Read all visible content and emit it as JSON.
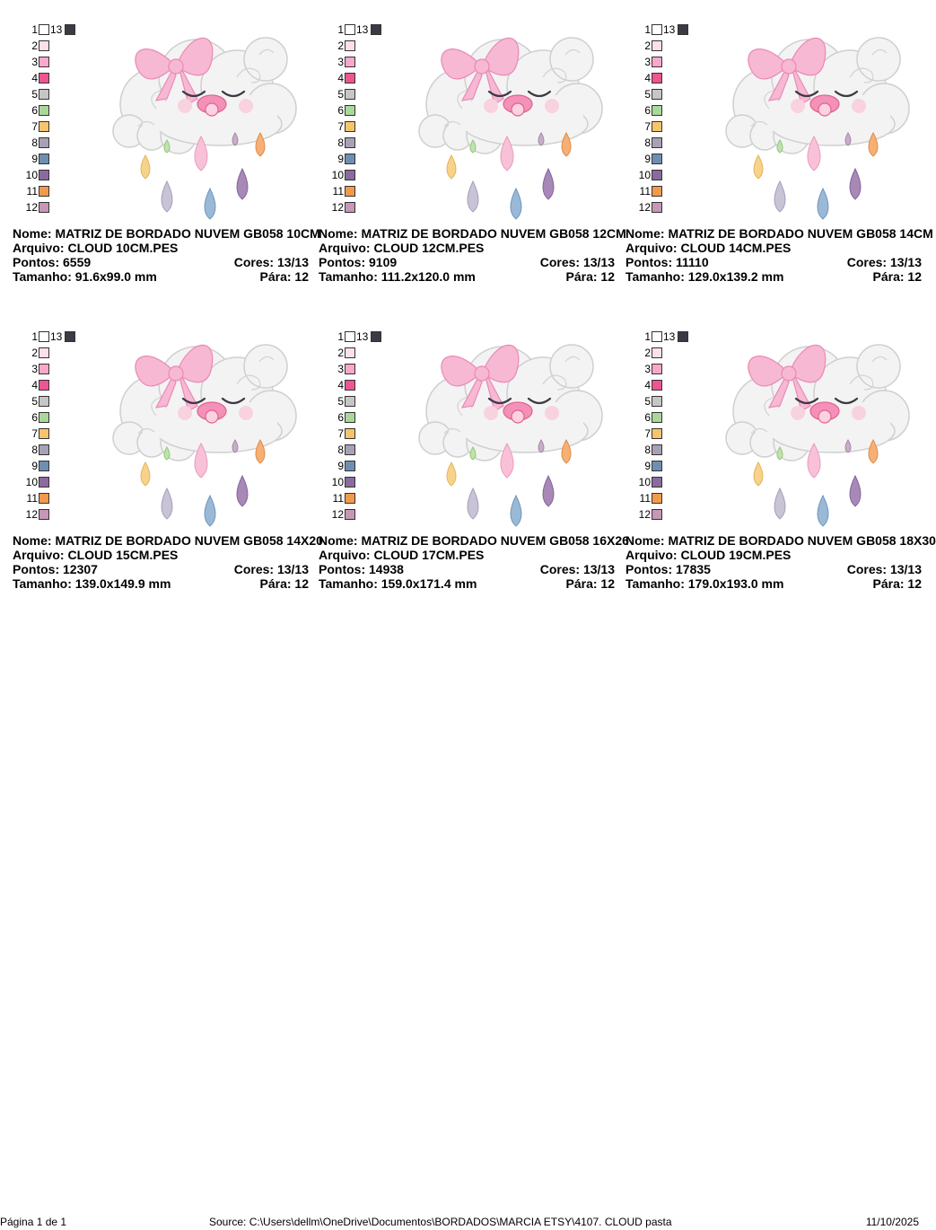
{
  "palette_colors": [
    "#ffffff",
    "#fde0ea",
    "#f9a8cc",
    "#ee5592",
    "#c6c6c6",
    "#a9d89a",
    "#f7c46d",
    "#a8a1b6",
    "#6f8fb0",
    "#8a6a9f",
    "#f29a4c",
    "#c896b6",
    "#3c3a45"
  ],
  "designs": [
    {
      "nome_label": "Nome:",
      "nome": "MATRIZ DE BORDADO NUVEM GB058 10CM",
      "arquivo_label": "Arquivo:",
      "arquivo": "CLOUD 10CM.PES",
      "pontos_label": "Pontos:",
      "pontos": "6559",
      "cores_label": "Cores:",
      "cores": "13/13",
      "tamanho_label": "Tamanho:",
      "tamanho": "91.6x99.0 mm",
      "para_label": "Pára:",
      "para": "12"
    },
    {
      "nome_label": "Nome:",
      "nome": "MATRIZ DE BORDADO NUVEM GB058 12CM",
      "arquivo_label": "Arquivo:",
      "arquivo": "CLOUD 12CM.PES",
      "pontos_label": "Pontos:",
      "pontos": "9109",
      "cores_label": "Cores:",
      "cores": "13/13",
      "tamanho_label": "Tamanho:",
      "tamanho": "111.2x120.0 mm",
      "para_label": "Pára:",
      "para": "12"
    },
    {
      "nome_label": "Nome:",
      "nome": "MATRIZ DE BORDADO NUVEM GB058 14CM",
      "arquivo_label": "Arquivo:",
      "arquivo": "CLOUD 14CM.PES",
      "pontos_label": "Pontos:",
      "pontos": "11110",
      "cores_label": "Cores:",
      "cores": "13/13",
      "tamanho_label": "Tamanho:",
      "tamanho": "129.0x139.2 mm",
      "para_label": "Pára:",
      "para": "12"
    },
    {
      "nome_label": "Nome:",
      "nome": "MATRIZ DE BORDADO NUVEM GB058 14X20",
      "arquivo_label": "Arquivo:",
      "arquivo": "CLOUD 15CM.PES",
      "pontos_label": "Pontos:",
      "pontos": "12307",
      "cores_label": "Cores:",
      "cores": "13/13",
      "tamanho_label": "Tamanho:",
      "tamanho": "139.0x149.9 mm",
      "para_label": "Pára:",
      "para": "12"
    },
    {
      "nome_label": "Nome:",
      "nome": "MATRIZ DE BORDADO NUVEM GB058 16X26",
      "arquivo_label": "Arquivo:",
      "arquivo": "CLOUD 17CM.PES",
      "pontos_label": "Pontos:",
      "pontos": "14938",
      "cores_label": "Cores:",
      "cores": "13/13",
      "tamanho_label": "Tamanho:",
      "tamanho": "159.0x171.4 mm",
      "para_label": "Pára:",
      "para": "12"
    },
    {
      "nome_label": "Nome:",
      "nome": "MATRIZ DE BORDADO NUVEM GB058 18X30",
      "arquivo_label": "Arquivo:",
      "arquivo": "CLOUD 19CM.PES",
      "pontos_label": "Pontos:",
      "pontos": "17835",
      "cores_label": "Cores:",
      "cores": "13/13",
      "tamanho_label": "Tamanho:",
      "tamanho": "179.0x193.0 mm",
      "para_label": "Pára:",
      "para": "12"
    }
  ],
  "footer": {
    "page": "Página 1 de 1",
    "source": "Source: C:\\Users\\dellm\\OneDrive\\Documentos\\BORDADOS\\MARCIA ETSY\\4107. CLOUD pasta",
    "date": "11/10/2025"
  }
}
